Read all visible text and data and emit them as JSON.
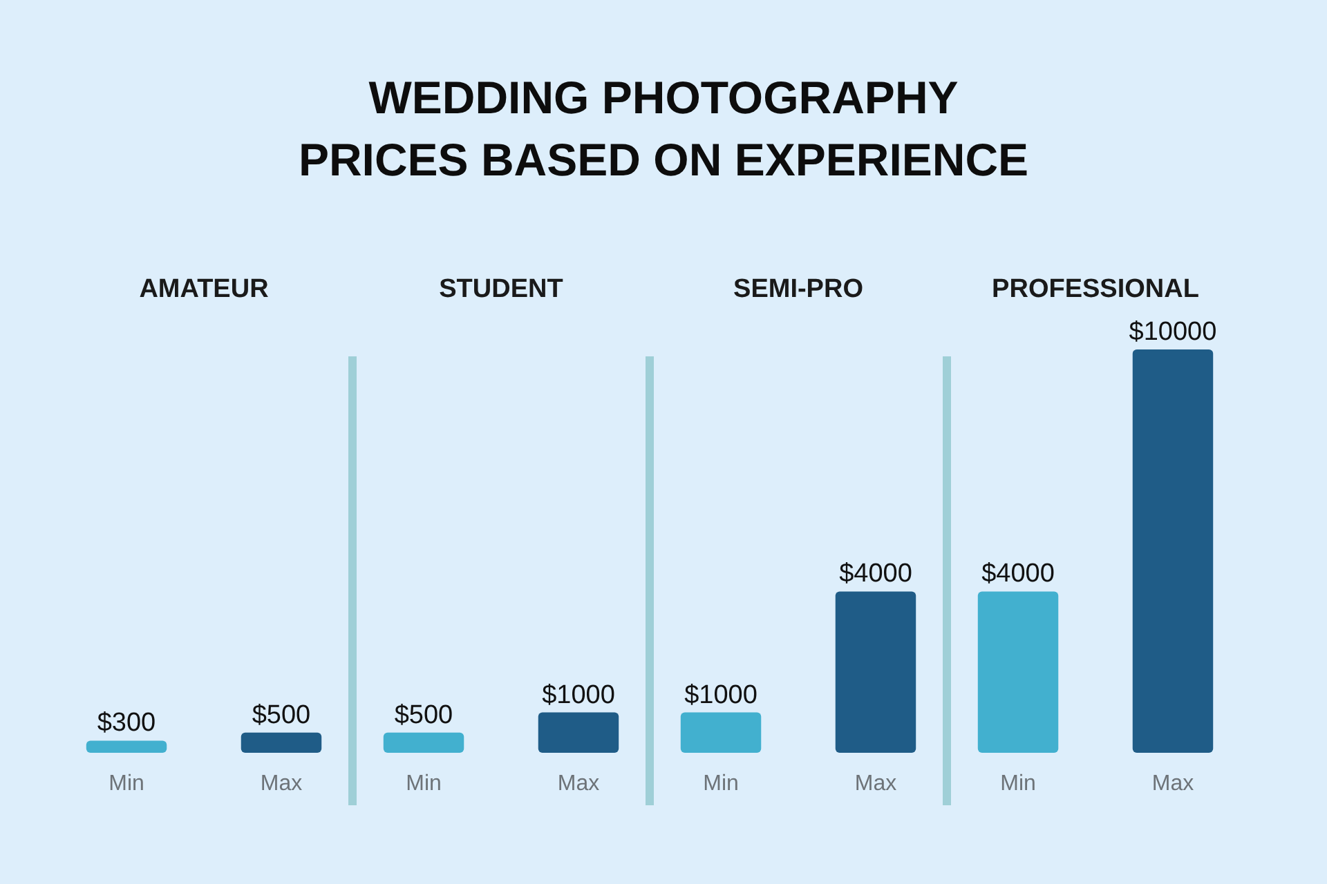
{
  "chart_data": {
    "type": "bar",
    "title": "WEDDING PHOTOGRAPHY\nPRICES BASED ON EXPERIENCE",
    "categories": [
      "AMATEUR",
      "STUDENT",
      "SEMI-PRO",
      "PROFESSIONAL"
    ],
    "ylim": [
      0,
      10000
    ],
    "series": [
      {
        "name": "Min",
        "color": "#42b0cf",
        "values": [
          300,
          500,
          1000,
          4000
        ],
        "value_labels": [
          "$300",
          "$500",
          "$1000",
          "$4000"
        ]
      },
      {
        "name": "Max",
        "color": "#1f5c87",
        "values": [
          500,
          1000,
          4000,
          10000
        ],
        "value_labels": [
          "$500",
          "$1000",
          "$4000",
          "$10000"
        ]
      }
    ]
  }
}
